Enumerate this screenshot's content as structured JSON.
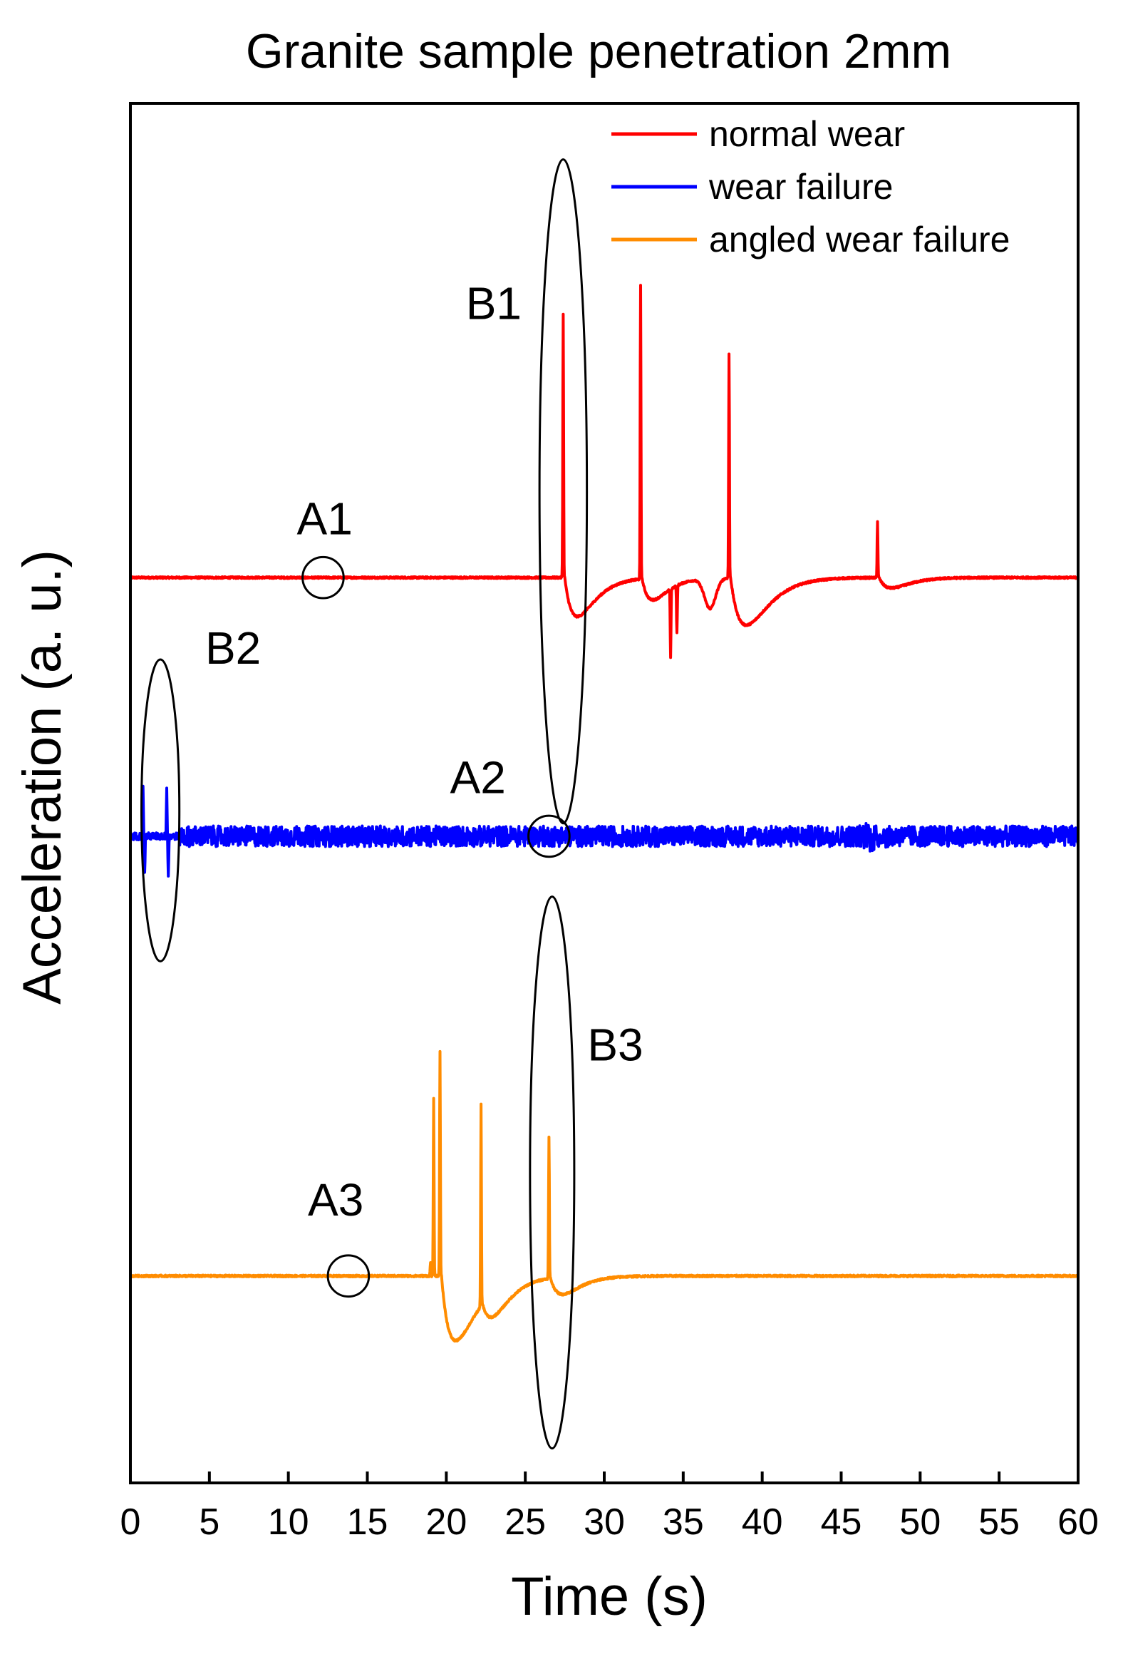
{
  "chart_data": {
    "type": "line",
    "title": "Granite sample  penetration 2mm",
    "xlabel": "Time (s)",
    "ylabel": "Acceleration (a. u.)",
    "xlim": [
      0,
      60
    ],
    "xticks": [
      0,
      5,
      10,
      15,
      20,
      25,
      30,
      35,
      40,
      45,
      50,
      55,
      60
    ],
    "ylim": [
      -8,
      8
    ],
    "y_ticks_shown": false,
    "grid": false,
    "legend_position": "top-right",
    "series": [
      {
        "name": "normal wear",
        "color": "#ff0000",
        "baseline": 2.5,
        "noise": 0.01,
        "features": [
          {
            "t": 27.4,
            "type": "spike",
            "amp": 3.05
          },
          {
            "t": 27.5,
            "type": "relax",
            "amp": -0.45,
            "tau": 0.8
          },
          {
            "t": 32.3,
            "type": "spike",
            "amp": 3.4
          },
          {
            "t": 32.4,
            "type": "relax",
            "amp": -0.25,
            "tau": 0.7
          },
          {
            "t": 34.2,
            "type": "spike",
            "amp": -0.8
          },
          {
            "t": 34.6,
            "type": "spike",
            "amp": -0.55
          },
          {
            "t": 36.7,
            "type": "dip",
            "amp": -0.35,
            "tau": 0.5
          },
          {
            "t": 37.9,
            "type": "spike",
            "amp": 2.6
          },
          {
            "t": 38.0,
            "type": "relax",
            "amp": -0.55,
            "tau": 1.0
          },
          {
            "t": 47.3,
            "type": "spike",
            "amp": 0.65
          },
          {
            "t": 47.4,
            "type": "relax",
            "amp": -0.12,
            "tau": 0.8
          }
        ]
      },
      {
        "name": "wear failure",
        "color": "#0000ff",
        "baseline": -0.5,
        "noise": 0.12,
        "features": [
          {
            "t": 0.8,
            "type": "spike",
            "amp": 0.55
          },
          {
            "t": 0.9,
            "type": "spike",
            "amp": -0.45
          },
          {
            "t": 2.3,
            "type": "spike",
            "amp": 0.55
          },
          {
            "t": 2.4,
            "type": "spike",
            "amp": -0.45
          },
          {
            "t": 47.0,
            "type": "burst",
            "amp": 0.1
          }
        ]
      },
      {
        "name": "angled wear failure",
        "color": "#ff8c00",
        "baseline": -5.6,
        "noise": 0.01,
        "features": [
          {
            "t": 19.0,
            "type": "spike",
            "amp": 0.15
          },
          {
            "t": 19.2,
            "type": "spike",
            "amp": 2.05
          },
          {
            "t": 19.6,
            "type": "spike",
            "amp": 2.6
          },
          {
            "t": 19.7,
            "type": "relax",
            "amp": -0.75,
            "tau": 0.9
          },
          {
            "t": 22.2,
            "type": "spike",
            "amp": 2.35
          },
          {
            "t": 22.3,
            "type": "relax",
            "amp": -0.28,
            "tau": 0.8
          },
          {
            "t": 26.5,
            "type": "spike",
            "amp": 1.65
          },
          {
            "t": 26.6,
            "type": "relax",
            "amp": -0.2,
            "tau": 0.8
          }
        ]
      }
    ],
    "annotations": [
      {
        "label": "A1",
        "shape": "circle",
        "x": 12.2,
        "y": 2.5,
        "rx": 1.3,
        "ry": 0.22,
        "label_x": 12.3,
        "label_y": 3.0
      },
      {
        "label": "B1",
        "shape": "ellipse",
        "x": 27.4,
        "y": 3.5,
        "rx": 1.5,
        "ry": 3.85,
        "label_x": 23.0,
        "label_y": 5.5
      },
      {
        "label": "B2",
        "shape": "ellipse",
        "x": 1.9,
        "y": -0.2,
        "rx": 1.2,
        "ry": 1.75,
        "label_x": 6.5,
        "label_y": 1.5
      },
      {
        "label": "A2",
        "shape": "circle",
        "x": 26.5,
        "y": -0.5,
        "rx": 1.3,
        "ry": 0.22,
        "label_x": 22.0,
        "label_y": 0.0
      },
      {
        "label": "A3",
        "shape": "circle",
        "x": 13.8,
        "y": -5.6,
        "rx": 1.3,
        "ry": 0.22,
        "label_x": 13.0,
        "label_y": -4.9
      },
      {
        "label": "B3",
        "shape": "ellipse",
        "x": 26.7,
        "y": -4.4,
        "rx": 1.4,
        "ry": 3.2,
        "label_x": 30.7,
        "label_y": -3.1
      }
    ]
  }
}
